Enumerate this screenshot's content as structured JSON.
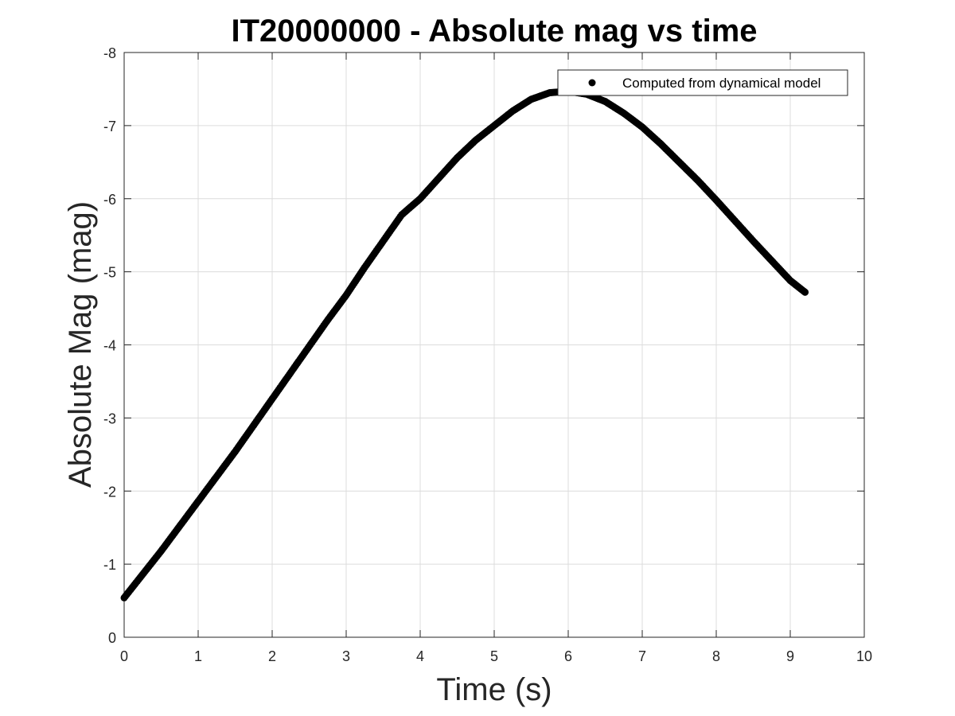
{
  "chart_data": {
    "type": "scatter",
    "title": "IT20000000 - Absolute mag vs time",
    "xlabel": "Time (s)",
    "ylabel": "Absolute Mag (mag)",
    "xlim": [
      0,
      10
    ],
    "ylim": [
      0,
      -8
    ],
    "y_axis_reversed": true,
    "grid": true,
    "legend_position": "top-right",
    "x_ticks": [
      "0",
      "1",
      "2",
      "3",
      "4",
      "5",
      "6",
      "7",
      "8",
      "9",
      "10"
    ],
    "y_ticks": [
      "0",
      "-1",
      "-2",
      "-3",
      "-4",
      "-5",
      "-6",
      "-7",
      "-8"
    ],
    "series": [
      {
        "name": "Computed from dynamical model",
        "marker": "filled-circle",
        "color": "#000000",
        "x": [
          0,
          0.25,
          0.5,
          0.75,
          1.0,
          1.25,
          1.5,
          1.75,
          2.0,
          2.25,
          2.5,
          2.75,
          3.0,
          3.25,
          3.5,
          3.75,
          4.0,
          4.25,
          4.5,
          4.75,
          5.0,
          5.25,
          5.5,
          5.75,
          6.0,
          6.25,
          6.5,
          6.75,
          7.0,
          7.25,
          7.5,
          7.75,
          8.0,
          8.25,
          8.5,
          8.75,
          9.0,
          9.2
        ],
        "y": [
          -0.54,
          -0.86,
          -1.18,
          -1.52,
          -1.86,
          -2.2,
          -2.54,
          -2.9,
          -3.26,
          -3.62,
          -3.98,
          -4.34,
          -4.68,
          -5.06,
          -5.42,
          -5.78,
          -6.0,
          -6.28,
          -6.56,
          -6.8,
          -7.0,
          -7.2,
          -7.36,
          -7.45,
          -7.47,
          -7.43,
          -7.33,
          -7.17,
          -6.98,
          -6.75,
          -6.5,
          -6.25,
          -5.98,
          -5.7,
          -5.42,
          -5.15,
          -4.88,
          -4.72
        ]
      }
    ]
  }
}
